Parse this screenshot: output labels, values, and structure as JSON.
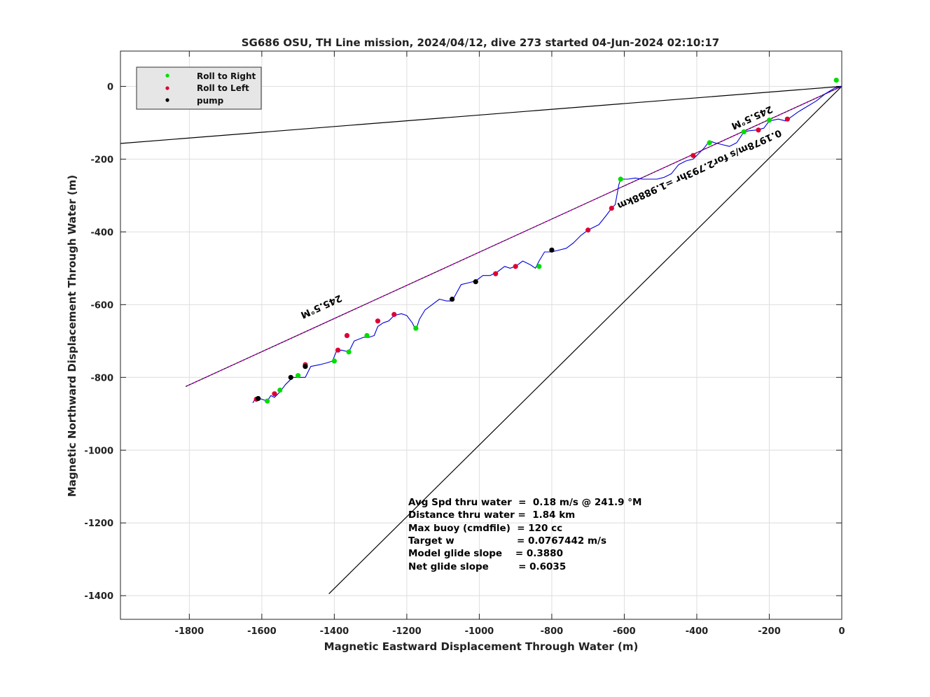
{
  "chart_data": {
    "type": "line",
    "title": "SG686 OSU, TH Line mission, 2024/04/12, dive 273 started 04-Jun-2024 02:10:17",
    "xlabel": "Magnetic Eastward Displacement Through Water (m)",
    "ylabel": "Magnetic Northward Displacement Through Water (m)",
    "xlim": [
      -1990,
      0
    ],
    "ylim": [
      -1465,
      97
    ],
    "xticks": [
      -1800,
      -1600,
      -1400,
      -1200,
      -1000,
      -800,
      -600,
      -400,
      -200,
      0
    ],
    "yticks": [
      0,
      -200,
      -400,
      -600,
      -800,
      -1000,
      -1200,
      -1400
    ],
    "grid": true,
    "legend": {
      "placement": "top-left",
      "entries": [
        {
          "label": "Roll to Right",
          "color": "#00dd00"
        },
        {
          "label": "Roll to Left",
          "color": "#dd0033"
        },
        {
          "label": "pump",
          "color": "#000000"
        }
      ]
    },
    "series": [
      {
        "color": "#0000dd",
        "x": [
          0,
          -20,
          -45,
          -70,
          -95,
          -120,
          -145,
          -155,
          -175,
          -200,
          -215,
          -235,
          -255,
          -270,
          -290,
          -310,
          -330,
          -350,
          -365,
          -380,
          -395,
          -410,
          -430,
          -450,
          -470,
          -490,
          -510,
          -530,
          -550,
          -570,
          -590,
          -610,
          -615,
          -625,
          -635,
          -650,
          -670,
          -700,
          -720,
          -740,
          -760,
          -780,
          -800,
          -820,
          -835,
          -845,
          -860,
          -880,
          -900,
          -915,
          -930,
          -950,
          -970,
          -990,
          -1010,
          -1030,
          -1050,
          -1075,
          -1090,
          -1110,
          -1130,
          -1150,
          -1165,
          -1175,
          -1185,
          -1200,
          -1215,
          -1235,
          -1250,
          -1265,
          -1280,
          -1290,
          -1305,
          -1320,
          -1345,
          -1360,
          -1380,
          -1395,
          -1405,
          -1420,
          -1440,
          -1465,
          -1480,
          -1495,
          -1515,
          -1535,
          -1550,
          -1565,
          -1575,
          -1585,
          -1600,
          -1615,
          -1625
        ],
        "y": [
          0,
          -5,
          -20,
          -40,
          -55,
          -70,
          -88,
          -95,
          -90,
          -95,
          -115,
          -120,
          -122,
          -125,
          -155,
          -165,
          -160,
          -155,
          -150,
          -170,
          -185,
          -200,
          -205,
          -215,
          -240,
          -250,
          -255,
          -255,
          -255,
          -252,
          -255,
          -255,
          -270,
          -325,
          -335,
          -355,
          -380,
          -395,
          -410,
          -430,
          -445,
          -450,
          -455,
          -455,
          -480,
          -500,
          -490,
          -480,
          -495,
          -500,
          -495,
          -510,
          -520,
          -520,
          -535,
          -540,
          -545,
          -590,
          -590,
          -585,
          -600,
          -615,
          -640,
          -670,
          -650,
          -630,
          -625,
          -630,
          -645,
          -650,
          -660,
          -685,
          -690,
          -690,
          -700,
          -730,
          -725,
          -730,
          -755,
          -760,
          -765,
          -770,
          -800,
          -800,
          -800,
          -820,
          -840,
          -855,
          -850,
          -865,
          -860,
          -855,
          -870
        ]
      }
    ],
    "markers": {
      "roll_right": {
        "x": [
          -15,
          -200,
          -270,
          -365,
          -610,
          -835,
          -1175,
          -1310,
          -1360,
          -1400,
          -1500,
          -1550,
          -1585
        ],
        "y": [
          17,
          -93,
          -125,
          -155,
          -255,
          -495,
          -665,
          -685,
          -730,
          -755,
          -795,
          -835,
          -865
        ]
      },
      "roll_left": {
        "x": [
          -150,
          -230,
          -410,
          -635,
          -700,
          -900,
          -955,
          -1235,
          -1280,
          -1365,
          -1390,
          -1480,
          -1565,
          -1615
        ],
        "y": [
          -90,
          -120,
          -190,
          -335,
          -395,
          -495,
          -515,
          -627,
          -645,
          -685,
          -725,
          -765,
          -845,
          -860
        ]
      },
      "pump": {
        "x": [
          -1010,
          -800,
          -1075,
          -1480,
          -1520,
          -1610
        ],
        "y": [
          -537,
          -450,
          -585,
          -770,
          -800,
          -858
        ]
      }
    },
    "reference_lines": [
      {
        "color": "#000000",
        "x": [
          0,
          -1990
        ],
        "y": [
          0,
          -157
        ]
      },
      {
        "color": "#000000",
        "x": [
          0,
          -1415
        ],
        "y": [
          0,
          -1395
        ]
      },
      {
        "color": "#000000",
        "x": [
          0,
          -1810
        ],
        "y": [
          0,
          -825
        ]
      },
      {
        "color": "#cc00cc",
        "dashed": true,
        "x": [
          0,
          -1810
        ],
        "y": [
          0,
          -825
        ]
      }
    ],
    "annotations": {
      "heading_near": "245.5°M",
      "heading_far": "245.5°M",
      "segment_text": "0.1978m/s for2.793hr =1.9888km",
      "stats": [
        "Avg Spd thru water  =  0.18 m/s @ 241.9 °M",
        "Distance thru water =  1.84 km",
        "Max buoy (cmdfile)  = 120 cc",
        "Target w                   = 0.0767442 m/s",
        "Model glide slope    = 0.3880",
        "Net glide slope         = 0.6035"
      ]
    }
  }
}
